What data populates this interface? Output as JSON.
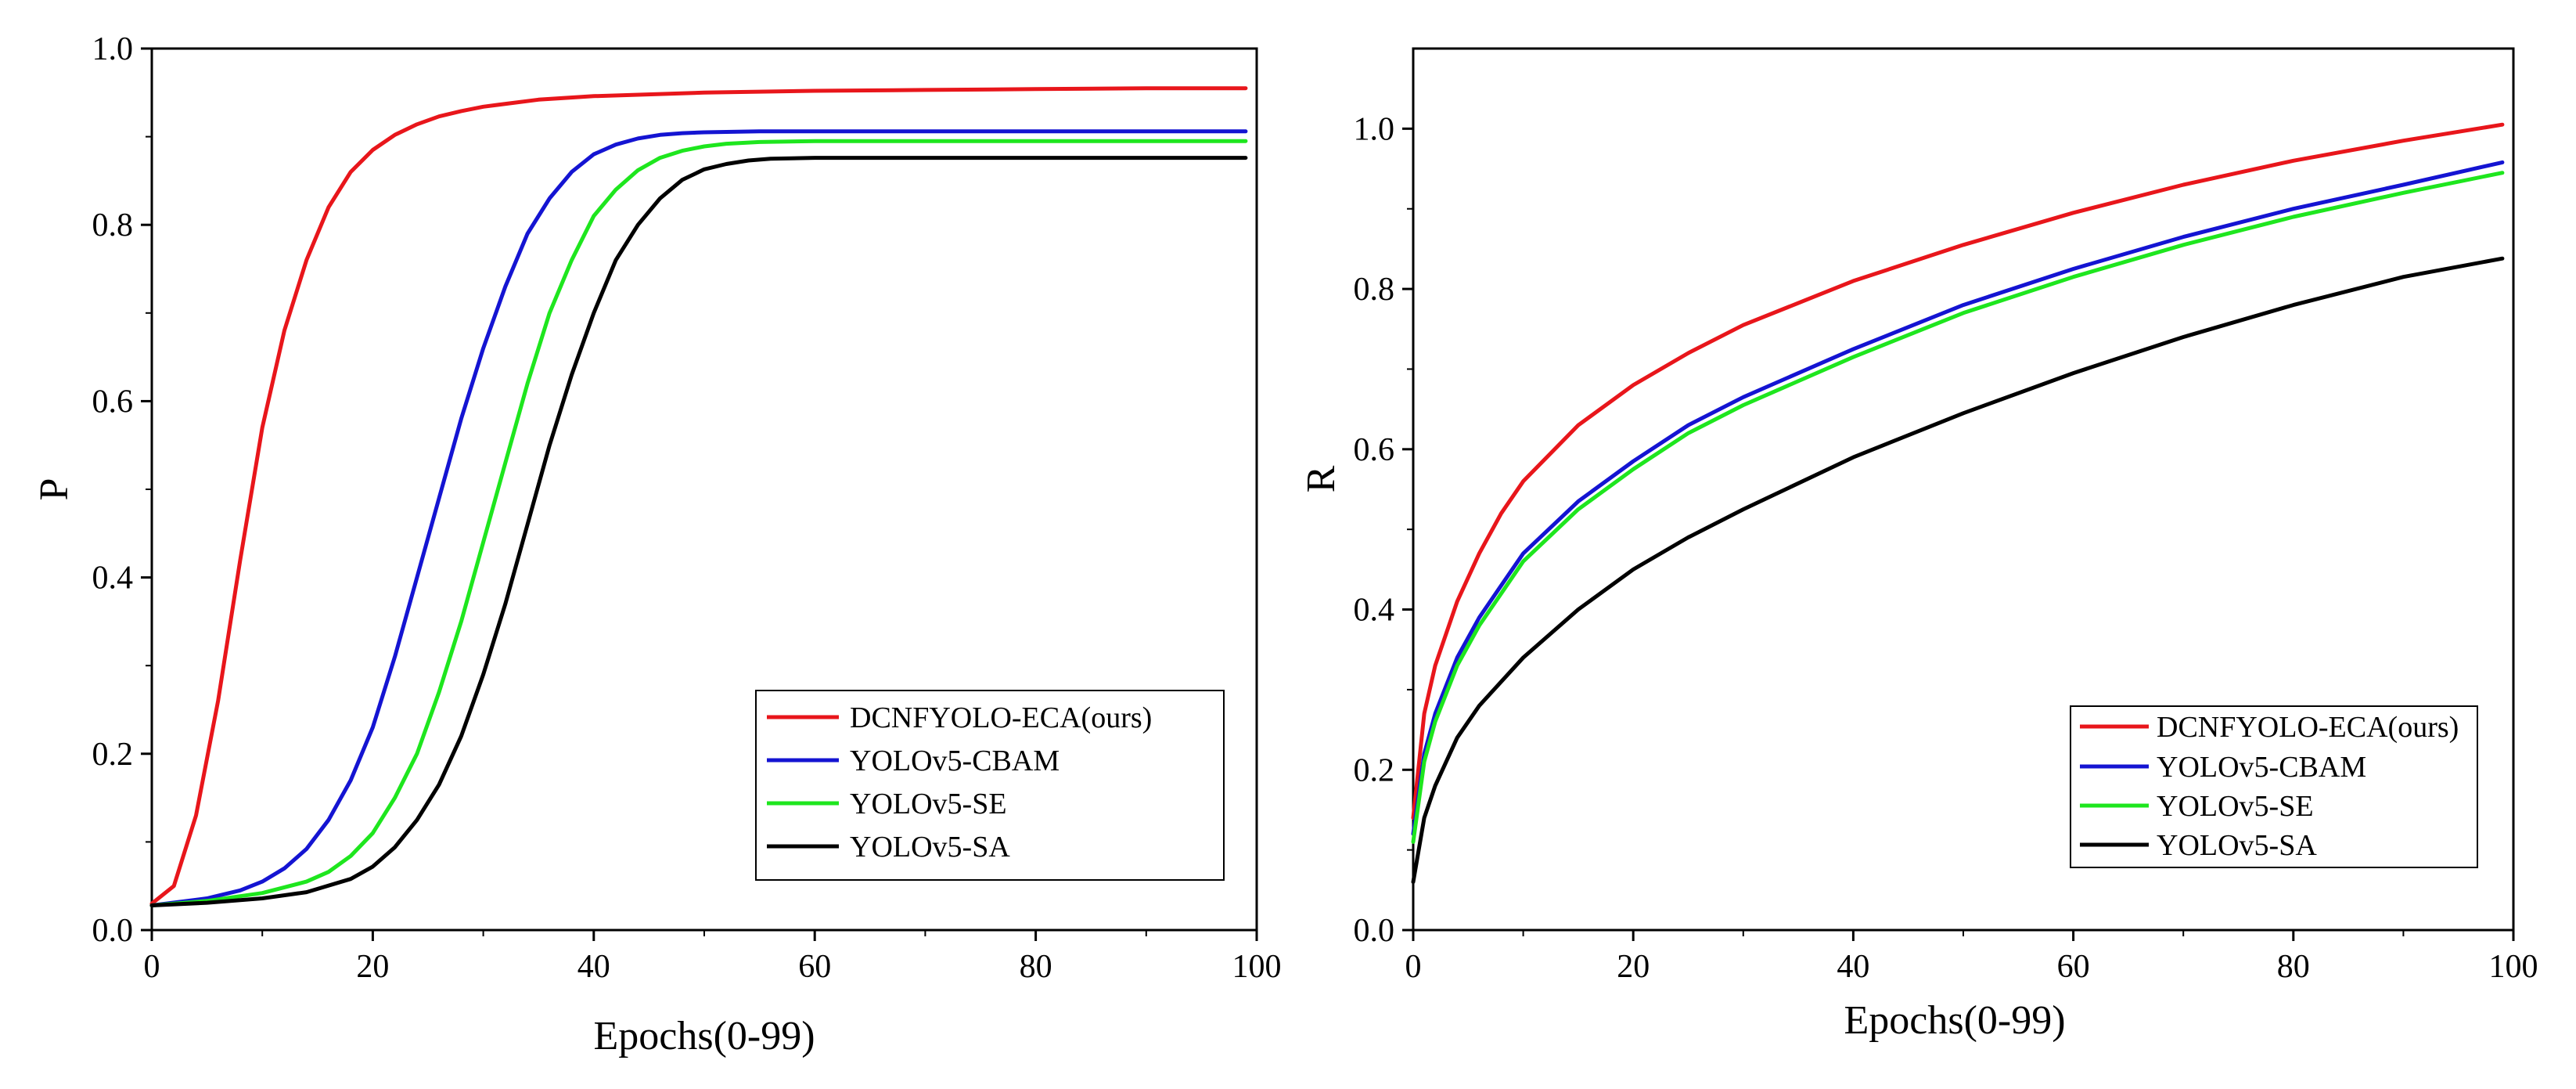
{
  "chart_data": [
    {
      "type": "line",
      "id": "precision",
      "xlabel": "Epochs(0-99)",
      "ylabel": "P",
      "xlim": [
        0,
        100
      ],
      "ylim": [
        0,
        1.0
      ],
      "xticks": [
        0,
        20,
        40,
        60,
        80,
        100
      ],
      "yticks": [
        0.0,
        0.2,
        0.4,
        0.6,
        0.8,
        1.0
      ],
      "xtick_labels": [
        "0",
        "20",
        "40",
        "60",
        "80",
        "100"
      ],
      "ytick_labels": [
        "0.0",
        "0.2",
        "0.4",
        "0.6",
        "0.8",
        "1.0"
      ],
      "legend_position": "bottom-right",
      "series": [
        {
          "name": "DCNFYOLO-ECA(ours)",
          "color": "#e8161b",
          "x": [
            0,
            2,
            4,
            6,
            8,
            10,
            12,
            14,
            16,
            18,
            20,
            22,
            24,
            26,
            28,
            30,
            35,
            40,
            50,
            60,
            70,
            80,
            90,
            99
          ],
          "y": [
            0.03,
            0.05,
            0.13,
            0.26,
            0.42,
            0.57,
            0.68,
            0.76,
            0.82,
            0.86,
            0.885,
            0.902,
            0.914,
            0.923,
            0.929,
            0.934,
            0.942,
            0.946,
            0.95,
            0.952,
            0.953,
            0.954,
            0.955,
            0.955
          ]
        },
        {
          "name": "YOLOv5-CBAM",
          "color": "#1414d2",
          "x": [
            0,
            5,
            8,
            10,
            12,
            14,
            16,
            18,
            20,
            22,
            24,
            26,
            28,
            30,
            32,
            34,
            36,
            38,
            40,
            42,
            44,
            46,
            48,
            50,
            55,
            60,
            70,
            80,
            90,
            99
          ],
          "y": [
            0.028,
            0.036,
            0.045,
            0.055,
            0.07,
            0.092,
            0.125,
            0.17,
            0.23,
            0.31,
            0.4,
            0.49,
            0.58,
            0.66,
            0.73,
            0.79,
            0.83,
            0.86,
            0.88,
            0.891,
            0.898,
            0.902,
            0.904,
            0.905,
            0.906,
            0.906,
            0.906,
            0.906,
            0.906,
            0.906
          ]
        },
        {
          "name": "YOLOv5-SE",
          "color": "#1ee61e",
          "x": [
            0,
            5,
            10,
            14,
            16,
            18,
            20,
            22,
            24,
            26,
            28,
            30,
            32,
            34,
            36,
            38,
            40,
            42,
            44,
            46,
            48,
            50,
            52,
            55,
            60,
            70,
            80,
            90,
            99
          ],
          "y": [
            0.028,
            0.033,
            0.042,
            0.055,
            0.066,
            0.084,
            0.11,
            0.15,
            0.2,
            0.27,
            0.35,
            0.44,
            0.53,
            0.62,
            0.7,
            0.76,
            0.81,
            0.84,
            0.862,
            0.876,
            0.884,
            0.889,
            0.892,
            0.894,
            0.895,
            0.895,
            0.895,
            0.895,
            0.895
          ]
        },
        {
          "name": "YOLOv5-SA",
          "color": "#000000",
          "x": [
            0,
            5,
            10,
            14,
            18,
            20,
            22,
            24,
            26,
            28,
            30,
            32,
            34,
            36,
            38,
            40,
            42,
            44,
            46,
            48,
            50,
            52,
            54,
            56,
            60,
            70,
            80,
            90,
            99
          ],
          "y": [
            0.028,
            0.031,
            0.036,
            0.043,
            0.058,
            0.072,
            0.094,
            0.125,
            0.165,
            0.22,
            0.29,
            0.37,
            0.46,
            0.55,
            0.63,
            0.7,
            0.76,
            0.8,
            0.83,
            0.851,
            0.863,
            0.869,
            0.873,
            0.875,
            0.876,
            0.876,
            0.876,
            0.876,
            0.876
          ]
        }
      ]
    },
    {
      "type": "line",
      "id": "recall",
      "xlabel": "Epochs(0-99)",
      "ylabel": "R",
      "xlim": [
        0,
        100
      ],
      "ylim": [
        0,
        1.1
      ],
      "xticks": [
        0,
        20,
        40,
        60,
        80,
        100
      ],
      "yticks": [
        0.0,
        0.2,
        0.4,
        0.6,
        0.8,
        1.0
      ],
      "xtick_labels": [
        "0",
        "20",
        "40",
        "60",
        "80",
        "100"
      ],
      "ytick_labels": [
        "0.0",
        "0.2",
        "0.4",
        "0.6",
        "0.8",
        "1.0"
      ],
      "legend_position": "bottom-right",
      "series": [
        {
          "name": "DCNFYOLO-ECA(ours)",
          "color": "#e8161b",
          "x": [
            0,
            1,
            2,
            4,
            6,
            8,
            10,
            15,
            20,
            25,
            30,
            40,
            50,
            60,
            70,
            80,
            90,
            99
          ],
          "y": [
            0.14,
            0.27,
            0.33,
            0.41,
            0.47,
            0.52,
            0.56,
            0.63,
            0.68,
            0.72,
            0.755,
            0.81,
            0.855,
            0.895,
            0.93,
            0.96,
            0.985,
            1.005
          ]
        },
        {
          "name": "YOLOv5-CBAM",
          "color": "#1414d2",
          "x": [
            0,
            1,
            2,
            4,
            6,
            8,
            10,
            15,
            20,
            25,
            30,
            40,
            50,
            60,
            70,
            80,
            90,
            99
          ],
          "y": [
            0.12,
            0.22,
            0.27,
            0.34,
            0.39,
            0.43,
            0.47,
            0.535,
            0.585,
            0.63,
            0.665,
            0.725,
            0.78,
            0.825,
            0.865,
            0.9,
            0.93,
            0.958
          ]
        },
        {
          "name": "YOLOv5-SE",
          "color": "#1ee61e",
          "x": [
            0,
            1,
            2,
            4,
            6,
            8,
            10,
            15,
            20,
            25,
            30,
            40,
            50,
            60,
            70,
            80,
            90,
            99
          ],
          "y": [
            0.11,
            0.21,
            0.26,
            0.33,
            0.38,
            0.42,
            0.46,
            0.525,
            0.575,
            0.62,
            0.655,
            0.715,
            0.77,
            0.815,
            0.855,
            0.89,
            0.92,
            0.945
          ]
        },
        {
          "name": "YOLOv5-SA",
          "color": "#000000",
          "x": [
            0,
            1,
            2,
            4,
            6,
            8,
            10,
            15,
            20,
            25,
            30,
            40,
            50,
            60,
            70,
            80,
            90,
            99
          ],
          "y": [
            0.06,
            0.14,
            0.18,
            0.24,
            0.28,
            0.31,
            0.34,
            0.4,
            0.45,
            0.49,
            0.525,
            0.59,
            0.645,
            0.695,
            0.74,
            0.78,
            0.815,
            0.838
          ]
        }
      ]
    }
  ]
}
